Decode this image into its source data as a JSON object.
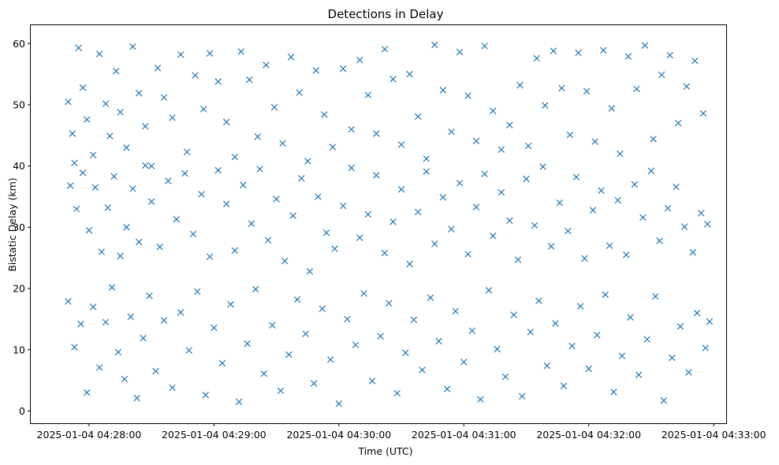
{
  "chart_data": {
    "type": "scatter",
    "title": "Detections in Delay",
    "xlabel": "Time (UTC)",
    "ylabel": "Bistatic Delay (km)",
    "marker": "x",
    "color": "#1f77b4",
    "grid": false,
    "xlim": [
      "2025-01-04 04:27:32",
      "2025-01-04 04:33:06"
    ],
    "ylim": [
      -2,
      63
    ],
    "xticks": [
      "2025-01-04 04:28:00",
      "2025-01-04 04:29:00",
      "2025-01-04 04:30:00",
      "2025-01-04 04:31:00",
      "2025-01-04 04:32:00",
      "2025-01-04 04:33:00"
    ],
    "yticks": [
      0,
      10,
      20,
      30,
      40,
      50,
      60
    ],
    "series": [
      {
        "points": [
          [
            "2025-01-04 04:27:50",
            50.5
          ],
          [
            "2025-01-04 04:27:52",
            45.3
          ],
          [
            "2025-01-04 04:27:53",
            40.5
          ],
          [
            "2025-01-04 04:27:55",
            59.3
          ],
          [
            "2025-01-04 04:27:57",
            52.8
          ],
          [
            "2025-01-04 04:27:59",
            47.6
          ],
          [
            "2025-01-04 04:28:02",
            41.8
          ],
          [
            "2025-01-04 04:28:05",
            58.3
          ],
          [
            "2025-01-04 04:28:08",
            50.2
          ],
          [
            "2025-01-04 04:28:10",
            44.9
          ],
          [
            "2025-01-04 04:28:13",
            55.5
          ],
          [
            "2025-01-04 04:28:15",
            48.8
          ],
          [
            "2025-01-04 04:28:18",
            43.0
          ],
          [
            "2025-01-04 04:28:21",
            59.5
          ],
          [
            "2025-01-04 04:28:24",
            51.9
          ],
          [
            "2025-01-04 04:28:27",
            46.5
          ],
          [
            "2025-01-04 04:28:30",
            40.0
          ],
          [
            "2025-01-04 04:28:33",
            56.0
          ],
          [
            "2025-01-04 04:28:36",
            51.2
          ],
          [
            "2025-01-04 04:28:40",
            47.9
          ],
          [
            "2025-01-04 04:28:44",
            58.2
          ],
          [
            "2025-01-04 04:28:47",
            42.3
          ],
          [
            "2025-01-04 04:28:51",
            54.8
          ],
          [
            "2025-01-04 04:28:55",
            49.3
          ],
          [
            "2025-01-04 04:28:58",
            58.4
          ],
          [
            "2025-01-04 04:29:02",
            53.8
          ],
          [
            "2025-01-04 04:29:06",
            47.2
          ],
          [
            "2025-01-04 04:29:10",
            41.5
          ],
          [
            "2025-01-04 04:29:13",
            58.7
          ],
          [
            "2025-01-04 04:29:17",
            54.1
          ],
          [
            "2025-01-04 04:29:21",
            44.8
          ],
          [
            "2025-01-04 04:29:25",
            56.5
          ],
          [
            "2025-01-04 04:29:29",
            49.6
          ],
          [
            "2025-01-04 04:29:33",
            43.7
          ],
          [
            "2025-01-04 04:29:37",
            57.8
          ],
          [
            "2025-01-04 04:29:41",
            52.0
          ],
          [
            "2025-01-04 04:29:45",
            40.8
          ],
          [
            "2025-01-04 04:29:49",
            55.6
          ],
          [
            "2025-01-04 04:29:53",
            48.4
          ],
          [
            "2025-01-04 04:29:57",
            43.1
          ],
          [
            "2025-01-04 04:30:02",
            55.9
          ],
          [
            "2025-01-04 04:30:06",
            46.0
          ],
          [
            "2025-01-04 04:30:10",
            57.3
          ],
          [
            "2025-01-04 04:30:14",
            51.6
          ],
          [
            "2025-01-04 04:30:18",
            45.3
          ],
          [
            "2025-01-04 04:30:22",
            59.1
          ],
          [
            "2025-01-04 04:30:26",
            54.2
          ],
          [
            "2025-01-04 04:30:30",
            43.5
          ],
          [
            "2025-01-04 04:30:34",
            55.0
          ],
          [
            "2025-01-04 04:30:38",
            48.1
          ],
          [
            "2025-01-04 04:30:42",
            41.2
          ],
          [
            "2025-01-04 04:30:46",
            59.8
          ],
          [
            "2025-01-04 04:30:50",
            52.4
          ],
          [
            "2025-01-04 04:30:54",
            45.6
          ],
          [
            "2025-01-04 04:30:58",
            58.6
          ],
          [
            "2025-01-04 04:31:02",
            51.5
          ],
          [
            "2025-01-04 04:31:06",
            44.1
          ],
          [
            "2025-01-04 04:31:10",
            59.6
          ],
          [
            "2025-01-04 04:31:14",
            49.0
          ],
          [
            "2025-01-04 04:31:18",
            42.7
          ],
          [
            "2025-01-04 04:31:22",
            46.7
          ],
          [
            "2025-01-04 04:31:27",
            53.2
          ],
          [
            "2025-01-04 04:31:31",
            43.3
          ],
          [
            "2025-01-04 04:31:35",
            57.6
          ],
          [
            "2025-01-04 04:31:39",
            49.9
          ],
          [
            "2025-01-04 04:31:43",
            58.8
          ],
          [
            "2025-01-04 04:31:47",
            52.7
          ],
          [
            "2025-01-04 04:31:51",
            45.1
          ],
          [
            "2025-01-04 04:31:55",
            58.5
          ],
          [
            "2025-01-04 04:31:59",
            52.2
          ],
          [
            "2025-01-04 04:32:03",
            44.0
          ],
          [
            "2025-01-04 04:32:07",
            58.9
          ],
          [
            "2025-01-04 04:32:11",
            49.4
          ],
          [
            "2025-01-04 04:32:15",
            42.0
          ],
          [
            "2025-01-04 04:32:19",
            57.9
          ],
          [
            "2025-01-04 04:32:23",
            52.6
          ],
          [
            "2025-01-04 04:32:27",
            59.7
          ],
          [
            "2025-01-04 04:32:31",
            44.4
          ],
          [
            "2025-01-04 04:32:35",
            54.9
          ],
          [
            "2025-01-04 04:32:39",
            58.1
          ],
          [
            "2025-01-04 04:32:43",
            47.0
          ],
          [
            "2025-01-04 04:32:47",
            53.0
          ],
          [
            "2025-01-04 04:32:51",
            57.2
          ],
          [
            "2025-01-04 04:32:55",
            48.6
          ],
          [
            "2025-01-04 04:27:51",
            36.8
          ],
          [
            "2025-01-04 04:27:54",
            33.0
          ],
          [
            "2025-01-04 04:27:57",
            38.9
          ],
          [
            "2025-01-04 04:28:00",
            29.5
          ],
          [
            "2025-01-04 04:28:03",
            36.5
          ],
          [
            "2025-01-04 04:28:06",
            26.0
          ],
          [
            "2025-01-04 04:28:09",
            33.2
          ],
          [
            "2025-01-04 04:28:12",
            38.3
          ],
          [
            "2025-01-04 04:28:15",
            25.3
          ],
          [
            "2025-01-04 04:28:18",
            30.0
          ],
          [
            "2025-01-04 04:28:21",
            36.3
          ],
          [
            "2025-01-04 04:28:24",
            27.6
          ],
          [
            "2025-01-04 04:28:27",
            40.1
          ],
          [
            "2025-01-04 04:28:30",
            34.2
          ],
          [
            "2025-01-04 04:28:34",
            26.8
          ],
          [
            "2025-01-04 04:28:38",
            37.6
          ],
          [
            "2025-01-04 04:28:42",
            31.3
          ],
          [
            "2025-01-04 04:28:46",
            38.8
          ],
          [
            "2025-01-04 04:28:50",
            28.9
          ],
          [
            "2025-01-04 04:28:54",
            35.4
          ],
          [
            "2025-01-04 04:28:58",
            25.2
          ],
          [
            "2025-01-04 04:29:02",
            39.3
          ],
          [
            "2025-01-04 04:29:06",
            33.8
          ],
          [
            "2025-01-04 04:29:10",
            26.2
          ],
          [
            "2025-01-04 04:29:14",
            36.9
          ],
          [
            "2025-01-04 04:29:18",
            30.6
          ],
          [
            "2025-01-04 04:29:22",
            39.5
          ],
          [
            "2025-01-04 04:29:26",
            27.9
          ],
          [
            "2025-01-04 04:29:30",
            34.6
          ],
          [
            "2025-01-04 04:29:34",
            24.5
          ],
          [
            "2025-01-04 04:29:38",
            31.9
          ],
          [
            "2025-01-04 04:29:42",
            38.0
          ],
          [
            "2025-01-04 04:29:46",
            22.8
          ],
          [
            "2025-01-04 04:29:50",
            35.0
          ],
          [
            "2025-01-04 04:29:54",
            29.1
          ],
          [
            "2025-01-04 04:29:58",
            26.5
          ],
          [
            "2025-01-04 04:30:02",
            33.5
          ],
          [
            "2025-01-04 04:30:06",
            39.7
          ],
          [
            "2025-01-04 04:30:10",
            28.3
          ],
          [
            "2025-01-04 04:30:14",
            32.1
          ],
          [
            "2025-01-04 04:30:18",
            38.5
          ],
          [
            "2025-01-04 04:30:22",
            25.8
          ],
          [
            "2025-01-04 04:30:26",
            30.9
          ],
          [
            "2025-01-04 04:30:30",
            36.2
          ],
          [
            "2025-01-04 04:30:34",
            24.0
          ],
          [
            "2025-01-04 04:30:38",
            32.5
          ],
          [
            "2025-01-04 04:30:42",
            39.1
          ],
          [
            "2025-01-04 04:30:46",
            27.3
          ],
          [
            "2025-01-04 04:30:50",
            34.9
          ],
          [
            "2025-01-04 04:30:54",
            29.7
          ],
          [
            "2025-01-04 04:30:58",
            37.2
          ],
          [
            "2025-01-04 04:31:02",
            25.6
          ],
          [
            "2025-01-04 04:31:06",
            33.3
          ],
          [
            "2025-01-04 04:31:10",
            38.7
          ],
          [
            "2025-01-04 04:31:14",
            28.6
          ],
          [
            "2025-01-04 04:31:18",
            35.7
          ],
          [
            "2025-01-04 04:31:22",
            31.1
          ],
          [
            "2025-01-04 04:31:26",
            24.7
          ],
          [
            "2025-01-04 04:31:30",
            37.9
          ],
          [
            "2025-01-04 04:31:34",
            30.3
          ],
          [
            "2025-01-04 04:31:38",
            39.9
          ],
          [
            "2025-01-04 04:31:42",
            26.9
          ],
          [
            "2025-01-04 04:31:46",
            34.0
          ],
          [
            "2025-01-04 04:31:50",
            29.4
          ],
          [
            "2025-01-04 04:31:54",
            38.2
          ],
          [
            "2025-01-04 04:31:58",
            24.9
          ],
          [
            "2025-01-04 04:32:02",
            32.8
          ],
          [
            "2025-01-04 04:32:06",
            36.0
          ],
          [
            "2025-01-04 04:32:10",
            27.0
          ],
          [
            "2025-01-04 04:32:14",
            34.4
          ],
          [
            "2025-01-04 04:32:18",
            25.5
          ],
          [
            "2025-01-04 04:32:22",
            37.0
          ],
          [
            "2025-01-04 04:32:26",
            31.6
          ],
          [
            "2025-01-04 04:32:30",
            39.2
          ],
          [
            "2025-01-04 04:32:34",
            27.8
          ],
          [
            "2025-01-04 04:32:38",
            33.1
          ],
          [
            "2025-01-04 04:32:42",
            36.6
          ],
          [
            "2025-01-04 04:32:46",
            30.1
          ],
          [
            "2025-01-04 04:32:50",
            25.9
          ],
          [
            "2025-01-04 04:32:54",
            32.3
          ],
          [
            "2025-01-04 04:32:57",
            30.5
          ],
          [
            "2025-01-04 04:27:50",
            17.9
          ],
          [
            "2025-01-04 04:27:53",
            10.4
          ],
          [
            "2025-01-04 04:27:56",
            14.2
          ],
          [
            "2025-01-04 04:27:59",
            3.0
          ],
          [
            "2025-01-04 04:28:02",
            17.0
          ],
          [
            "2025-01-04 04:28:05",
            7.1
          ],
          [
            "2025-01-04 04:28:08",
            14.5
          ],
          [
            "2025-01-04 04:28:11",
            20.2
          ],
          [
            "2025-01-04 04:28:14",
            9.6
          ],
          [
            "2025-01-04 04:28:17",
            5.2
          ],
          [
            "2025-01-04 04:28:20",
            15.4
          ],
          [
            "2025-01-04 04:28:23",
            2.1
          ],
          [
            "2025-01-04 04:28:26",
            11.9
          ],
          [
            "2025-01-04 04:28:29",
            18.8
          ],
          [
            "2025-01-04 04:28:32",
            6.5
          ],
          [
            "2025-01-04 04:28:36",
            14.8
          ],
          [
            "2025-01-04 04:28:40",
            3.8
          ],
          [
            "2025-01-04 04:28:44",
            16.1
          ],
          [
            "2025-01-04 04:28:48",
            9.9
          ],
          [
            "2025-01-04 04:28:52",
            19.5
          ],
          [
            "2025-01-04 04:28:56",
            2.6
          ],
          [
            "2025-01-04 04:29:00",
            13.6
          ],
          [
            "2025-01-04 04:29:04",
            7.8
          ],
          [
            "2025-01-04 04:29:08",
            17.4
          ],
          [
            "2025-01-04 04:29:12",
            1.5
          ],
          [
            "2025-01-04 04:29:16",
            11.0
          ],
          [
            "2025-01-04 04:29:20",
            19.9
          ],
          [
            "2025-01-04 04:29:24",
            6.1
          ],
          [
            "2025-01-04 04:29:28",
            14.0
          ],
          [
            "2025-01-04 04:29:32",
            3.3
          ],
          [
            "2025-01-04 04:29:36",
            9.2
          ],
          [
            "2025-01-04 04:29:40",
            18.2
          ],
          [
            "2025-01-04 04:29:44",
            12.6
          ],
          [
            "2025-01-04 04:29:48",
            4.5
          ],
          [
            "2025-01-04 04:29:52",
            16.7
          ],
          [
            "2025-01-04 04:29:56",
            8.4
          ],
          [
            "2025-01-04 04:30:00",
            1.2
          ],
          [
            "2025-01-04 04:30:04",
            15.0
          ],
          [
            "2025-01-04 04:30:08",
            10.8
          ],
          [
            "2025-01-04 04:30:12",
            19.2
          ],
          [
            "2025-01-04 04:30:16",
            4.9
          ],
          [
            "2025-01-04 04:30:20",
            12.2
          ],
          [
            "2025-01-04 04:30:24",
            17.6
          ],
          [
            "2025-01-04 04:30:28",
            2.9
          ],
          [
            "2025-01-04 04:30:32",
            9.5
          ],
          [
            "2025-01-04 04:30:36",
            14.9
          ],
          [
            "2025-01-04 04:30:40",
            6.7
          ],
          [
            "2025-01-04 04:30:44",
            18.5
          ],
          [
            "2025-01-04 04:30:48",
            11.4
          ],
          [
            "2025-01-04 04:30:52",
            3.6
          ],
          [
            "2025-01-04 04:30:56",
            16.3
          ],
          [
            "2025-01-04 04:31:00",
            8.0
          ],
          [
            "2025-01-04 04:31:04",
            13.1
          ],
          [
            "2025-01-04 04:31:08",
            1.9
          ],
          [
            "2025-01-04 04:31:12",
            19.7
          ],
          [
            "2025-01-04 04:31:16",
            10.1
          ],
          [
            "2025-01-04 04:31:20",
            5.6
          ],
          [
            "2025-01-04 04:31:24",
            15.7
          ],
          [
            "2025-01-04 04:31:28",
            2.4
          ],
          [
            "2025-01-04 04:31:32",
            12.9
          ],
          [
            "2025-01-04 04:31:36",
            18.0
          ],
          [
            "2025-01-04 04:31:40",
            7.4
          ],
          [
            "2025-01-04 04:31:44",
            14.3
          ],
          [
            "2025-01-04 04:31:48",
            4.1
          ],
          [
            "2025-01-04 04:31:52",
            10.6
          ],
          [
            "2025-01-04 04:31:56",
            17.1
          ],
          [
            "2025-01-04 04:32:00",
            6.9
          ],
          [
            "2025-01-04 04:32:04",
            12.4
          ],
          [
            "2025-01-04 04:32:08",
            19.0
          ],
          [
            "2025-01-04 04:32:12",
            3.1
          ],
          [
            "2025-01-04 04:32:16",
            9.0
          ],
          [
            "2025-01-04 04:32:20",
            15.3
          ],
          [
            "2025-01-04 04:32:24",
            5.9
          ],
          [
            "2025-01-04 04:32:28",
            11.7
          ],
          [
            "2025-01-04 04:32:32",
            18.7
          ],
          [
            "2025-01-04 04:32:36",
            1.7
          ],
          [
            "2025-01-04 04:32:40",
            8.7
          ],
          [
            "2025-01-04 04:32:44",
            13.8
          ],
          [
            "2025-01-04 04:32:48",
            6.3
          ],
          [
            "2025-01-04 04:32:52",
            16.0
          ],
          [
            "2025-01-04 04:32:56",
            10.3
          ],
          [
            "2025-01-04 04:32:58",
            14.6
          ]
        ]
      }
    ]
  }
}
